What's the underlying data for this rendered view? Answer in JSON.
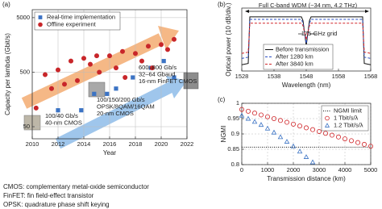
{
  "chart_data": [
    {
      "type": "scatter",
      "panel_label": "(a)",
      "xlabel": "Year",
      "ylabel": "Capacity per lambda (Gbit/s)",
      "log_y": true,
      "grid": true,
      "legend": "upper left",
      "xlim": [
        2010,
        2022
      ],
      "xticks": [
        2010,
        2012,
        2014,
        2016,
        2018,
        2020,
        2022
      ],
      "ylim": [
        30,
        7000
      ],
      "yticks": [
        50,
        500,
        5000
      ],
      "series": [
        {
          "name": "Real-time implementation",
          "color": "#3b73c4",
          "marker": "square",
          "filled": true,
          "x": [
            2012,
            2013.8,
            2014.8,
            2015.8,
            2016.5,
            2017.8,
            2019.2,
            2020.2,
            2021
          ],
          "values": [
            100,
            100,
            200,
            200,
            250,
            400,
            600,
            800,
            400
          ]
        },
        {
          "name": "Offline experiment",
          "color": "#c8262a",
          "marker": "circle",
          "filled": true,
          "x": [
            2010.3,
            2011,
            2011.5,
            2012,
            2012.5,
            2013,
            2013.5,
            2014,
            2014.5,
            2015,
            2015.2,
            2016,
            2016.5,
            2017,
            2017.2,
            2018,
            2018.5,
            2019,
            2019.3,
            2020,
            2020.5,
            2021
          ],
          "values": [
            110,
            450,
            250,
            550,
            300,
            800,
            350,
            900,
            700,
            1000,
            500,
            1000,
            600,
            1200,
            400,
            1100,
            800,
            1500,
            600,
            1600,
            1300,
            2000
          ]
        }
      ],
      "annotations": [
        [
          "100/40 Gb/s",
          "40-nm CMOS"
        ],
        [
          "100/150/200 Gb/s",
          "OPSK/8QAM/16QAM",
          "20-nm CMOS"
        ],
        [
          "600–800 Gb/s",
          "32–64 Gbaud",
          "16-nm FinFET CMOS"
        ]
      ]
    },
    {
      "type": "line",
      "panel_label": "(b)",
      "xlabel": "Wavelength (nm)",
      "ylabel": "Optical power (10 dB/div.)",
      "grid": false,
      "legend": "lower center",
      "xlim": [
        1528,
        1568
      ],
      "xticks": [
        1528,
        1538,
        1548,
        1558,
        1568
      ],
      "ylim": [
        0,
        50
      ],
      "series": [
        {
          "name": "Before transmission",
          "color": "#111111",
          "marker": "line",
          "x": [
            1528,
            1530,
            1530.5,
            1546.5,
            1547,
            1548,
            1549,
            1549.5,
            1565.5,
            1566,
            1568
          ],
          "values": [
            5,
            6,
            43,
            43,
            40,
            20,
            40,
            43,
            43,
            6,
            5
          ]
        },
        {
          "name": "After 1280 km",
          "color": "#2b4fc4",
          "marker": "dashed",
          "x": [
            1528,
            1530,
            1530.5,
            1546.5,
            1547,
            1548,
            1549,
            1549.5,
            1565.5,
            1566,
            1568
          ],
          "values": [
            10,
            11,
            41,
            41,
            38,
            22,
            38,
            41,
            41,
            11,
            10
          ]
        },
        {
          "name": "After 3840 km",
          "color": "#d0262a",
          "marker": "dashed",
          "x": [
            1528,
            1530,
            1530.5,
            1546.5,
            1547,
            1548,
            1549,
            1549.5,
            1565.5,
            1566,
            1568
          ],
          "values": [
            14,
            15,
            38,
            38,
            36,
            25,
            36,
            38,
            38,
            15,
            14
          ]
        }
      ],
      "annotations": [
        [
          "Full C-band WDM (~34 nm, 4.2 THz)"
        ],
        [
          "175-GHz grid"
        ]
      ]
    },
    {
      "type": "scatter",
      "panel_label": "(c)",
      "xlabel": "Transmission distance (km)",
      "ylabel": "NGMI",
      "grid": true,
      "legend": "upper right",
      "xlim": [
        0,
        5000
      ],
      "xticks": [
        0,
        1000,
        2000,
        3000,
        4000,
        5000
      ],
      "ylim": [
        0.8,
        1.0
      ],
      "yticks": [
        0.8,
        0.85,
        0.9,
        0.95,
        1
      ],
      "series": [
        {
          "name": "NGMI limit",
          "color": "#111111",
          "marker": "dotted",
          "x": [
            0,
            5000
          ],
          "values": [
            0.857,
            0.857
          ]
        },
        {
          "name": "1 Tbit/s/λ",
          "color": "#d0262a",
          "marker": "circle",
          "filled": false,
          "x": [
            0,
            250,
            500,
            750,
            1000,
            1250,
            1500,
            1750,
            2000,
            2250,
            2500,
            2750,
            3000,
            3250,
            3500,
            3750,
            4000,
            4250,
            4500,
            4750,
            5000
          ],
          "values": [
            0.98,
            0.974,
            0.968,
            0.962,
            0.956,
            0.95,
            0.944,
            0.938,
            0.932,
            0.926,
            0.92,
            0.914,
            0.908,
            0.902,
            0.896,
            0.89,
            0.884,
            0.878,
            0.872,
            0.866,
            0.86
          ]
        },
        {
          "name": "1.2 Tbit/s/λ",
          "color": "#3b73c4",
          "marker": "triangle",
          "filled": false,
          "x": [
            0,
            250,
            500,
            750,
            1000,
            1250,
            1500,
            1750,
            2000,
            2250,
            2500,
            2750
          ],
          "values": [
            0.96,
            0.95,
            0.94,
            0.93,
            0.918,
            0.905,
            0.89,
            0.875,
            0.86,
            0.843,
            0.825,
            0.808
          ]
        }
      ]
    }
  ],
  "footnotes": [
    "CMOS: complementary metal-oxide semiconductor",
    "FinFET: fin field-effect transistor",
    "OPSK: quadrature phase shift keying"
  ]
}
